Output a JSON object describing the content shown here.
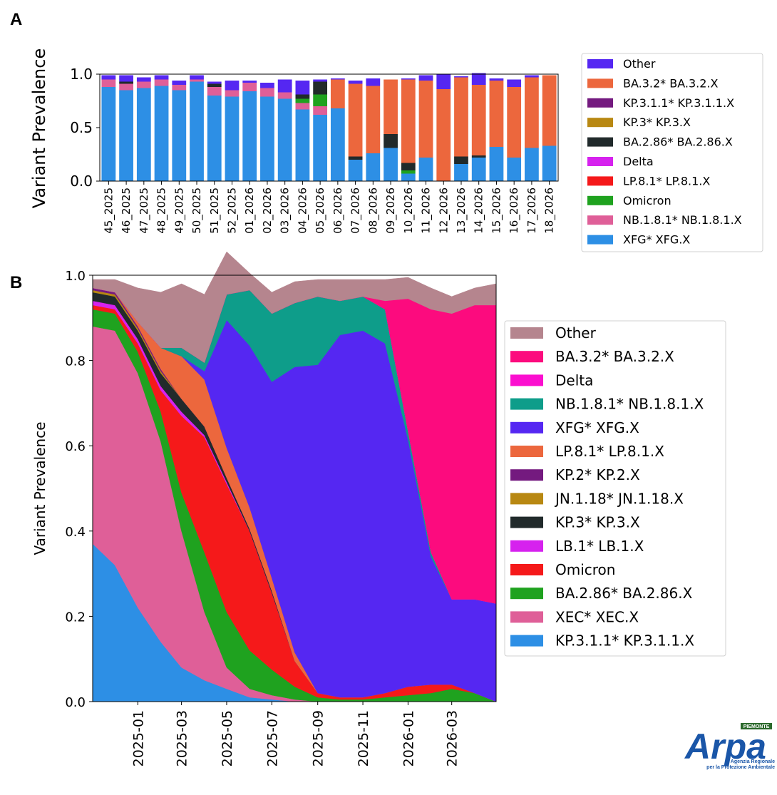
{
  "panels": {
    "a": "A",
    "b": "B"
  },
  "logo": {
    "brand": "Arpa",
    "region": "PIEMONTE",
    "line1": "Agenzia Regionale",
    "line2": "per la Protezione Ambientale"
  },
  "chart_data": [
    {
      "id": "A",
      "type": "bar",
      "stacked": true,
      "ylabel": "Variant Prevalence",
      "ylim": [
        0,
        1.0
      ],
      "yticks": [
        "0.0",
        "0.5",
        "1.0"
      ],
      "legend_placement": "right",
      "categories": [
        "45_2025",
        "46_2025",
        "47_2025",
        "48_2025",
        "49_2025",
        "50_2025",
        "51_2025",
        "52_2025",
        "01_2026",
        "02_2026",
        "03_2026",
        "04_2026",
        "05_2026",
        "06_2026",
        "07_2026",
        "08_2026",
        "09_2026",
        "10_2026",
        "11_2026",
        "12_2026",
        "13_2026",
        "14_2026",
        "15_2026",
        "16_2026",
        "17_2026",
        "18_2026"
      ],
      "series": [
        {
          "name": "XFG* XFG.X",
          "color": "#2d8fe5",
          "values": [
            0.88,
            0.85,
            0.87,
            0.89,
            0.85,
            0.93,
            0.8,
            0.79,
            0.84,
            0.79,
            0.77,
            0.67,
            0.62,
            0.68,
            0.2,
            0.26,
            0.31,
            0.07,
            0.22,
            0.0,
            0.16,
            0.22,
            0.32,
            0.22,
            0.31,
            0.33
          ]
        },
        {
          "name": "NB.1.8.1* NB.1.8.1.X",
          "color": "#df5f98",
          "values": [
            0.07,
            0.06,
            0.06,
            0.06,
            0.05,
            0.02,
            0.08,
            0.06,
            0.08,
            0.08,
            0.06,
            0.06,
            0.08,
            0.0,
            0.0,
            0.0,
            0.0,
            0.0,
            0.0,
            0.0,
            0.0,
            0.0,
            0.0,
            0.0,
            0.0,
            0.0
          ]
        },
        {
          "name": "Omicron",
          "color": "#1fa21f",
          "values": [
            0.0,
            0.0,
            0.0,
            0.0,
            0.0,
            0.0,
            0.0,
            0.0,
            0.0,
            0.0,
            0.0,
            0.04,
            0.11,
            0.0,
            0.0,
            0.0,
            0.0,
            0.03,
            0.0,
            0.0,
            0.0,
            0.0,
            0.0,
            0.0,
            0.0,
            0.0
          ]
        },
        {
          "name": "LP.8.1* LP.8.1.X",
          "color": "#f5191a",
          "values": [
            0,
            0,
            0,
            0,
            0,
            0,
            0,
            0,
            0,
            0,
            0,
            0,
            0,
            0,
            0,
            0,
            0,
            0,
            0,
            0,
            0,
            0,
            0,
            0,
            0,
            0
          ]
        },
        {
          "name": "Delta",
          "color": "#d622ee",
          "values": [
            0,
            0,
            0,
            0,
            0,
            0,
            0,
            0,
            0,
            0,
            0,
            0,
            0,
            0,
            0,
            0,
            0,
            0,
            0,
            0,
            0,
            0,
            0,
            0,
            0,
            0
          ]
        },
        {
          "name": "BA.2.86* BA.2.86.X",
          "color": "#212a2b",
          "values": [
            0.0,
            0.02,
            0.0,
            0.0,
            0.0,
            0.0,
            0.03,
            0.0,
            0.0,
            0.0,
            0.0,
            0.04,
            0.12,
            0.0,
            0.03,
            0.0,
            0.13,
            0.07,
            0.0,
            0.0,
            0.07,
            0.02,
            0.0,
            0.0,
            0.0,
            0.0
          ]
        },
        {
          "name": "KP.3* KP.3.X",
          "color": "#b88812",
          "values": [
            0,
            0,
            0,
            0,
            0,
            0,
            0,
            0,
            0,
            0,
            0,
            0,
            0,
            0,
            0,
            0,
            0,
            0,
            0,
            0,
            0,
            0,
            0,
            0,
            0,
            0
          ]
        },
        {
          "name": "KP.3.1.1* KP.3.1.1.X",
          "color": "#741a7f",
          "values": [
            0,
            0,
            0,
            0,
            0,
            0,
            0,
            0,
            0,
            0,
            0,
            0,
            0,
            0,
            0,
            0,
            0,
            0,
            0,
            0,
            0,
            0,
            0,
            0,
            0,
            0
          ]
        },
        {
          "name": "BA.3.2* BA.3.2.X",
          "color": "#ec673d",
          "values": [
            0.0,
            0.0,
            0.0,
            0.0,
            0.0,
            0.0,
            0.0,
            0.0,
            0.0,
            0.0,
            0.0,
            0.0,
            0.0,
            0.27,
            0.68,
            0.63,
            0.51,
            0.78,
            0.72,
            0.86,
            0.74,
            0.66,
            0.62,
            0.66,
            0.66,
            0.66
          ]
        },
        {
          "name": "Other",
          "color": "#5527f2",
          "values": [
            0.04,
            0.06,
            0.04,
            0.04,
            0.04,
            0.04,
            0.02,
            0.09,
            0.02,
            0.05,
            0.12,
            0.13,
            0.02,
            0.01,
            0.03,
            0.07,
            0.0,
            0.01,
            0.05,
            0.14,
            0.01,
            0.11,
            0.02,
            0.07,
            0.02,
            0.0
          ]
        }
      ]
    },
    {
      "id": "B",
      "type": "area",
      "stacked": true,
      "ylabel": "Variant Prevalence",
      "ylim": [
        0,
        1.0
      ],
      "yticks": [
        "0.0",
        "0.2",
        "0.4",
        "0.6",
        "0.8",
        "1.0"
      ],
      "xlim": [
        "2024-11-01",
        "2026-04-30"
      ],
      "xticks": [
        "2025-01",
        "2025-03",
        "2025-05",
        "2025-07",
        "2025-09",
        "2025-11",
        "2026-01",
        "2026-03"
      ],
      "legend_placement": "right",
      "x": [
        "2024-11-01",
        "2024-12-01",
        "2025-01-01",
        "2025-02-01",
        "2025-03-01",
        "2025-04-01",
        "2025-05-01",
        "2025-06-01",
        "2025-07-01",
        "2025-08-01",
        "2025-09-01",
        "2025-10-01",
        "2025-11-01",
        "2025-12-01",
        "2026-01-01",
        "2026-02-01",
        "2026-03-01",
        "2026-04-01",
        "2026-04-30"
      ],
      "series": [
        {
          "name": "KP.3.1.1* KP.3.1.1.X",
          "color": "#2d8fe5",
          "values": [
            0.37,
            0.32,
            0.22,
            0.14,
            0.08,
            0.05,
            0.03,
            0.01,
            0.005,
            0.0,
            0,
            0,
            0,
            0,
            0,
            0,
            0,
            0,
            0
          ]
        },
        {
          "name": "XEC* XEC.X",
          "color": "#df5f98",
          "values": [
            0.51,
            0.55,
            0.55,
            0.47,
            0.32,
            0.16,
            0.05,
            0.02,
            0.01,
            0.005,
            0,
            0,
            0,
            0,
            0,
            0,
            0,
            0,
            0
          ]
        },
        {
          "name": "BA.2.86* BA.2.86.X",
          "color": "#1fa21f",
          "values": [
            0.04,
            0.04,
            0.05,
            0.07,
            0.09,
            0.14,
            0.13,
            0.09,
            0.06,
            0.03,
            0.01,
            0.005,
            0.005,
            0.01,
            0.015,
            0.02,
            0.03,
            0.02,
            0.0
          ]
        },
        {
          "name": "Omicron",
          "color": "#f5191a",
          "values": [
            0.01,
            0.01,
            0.02,
            0.05,
            0.18,
            0.27,
            0.3,
            0.28,
            0.18,
            0.06,
            0.01,
            0.005,
            0.005,
            0.01,
            0.02,
            0.02,
            0.01,
            0.0,
            0.0
          ]
        },
        {
          "name": "LB.1* LB.1.X",
          "color": "#d622ee",
          "values": [
            0.01,
            0.01,
            0.01,
            0.01,
            0.01,
            0.005,
            0.005,
            0,
            0,
            0,
            0,
            0,
            0,
            0,
            0,
            0,
            0,
            0,
            0
          ]
        },
        {
          "name": "KP.3* KP.3.X",
          "color": "#212a2b",
          "values": [
            0.02,
            0.02,
            0.02,
            0.03,
            0.03,
            0.02,
            0.01,
            0.005,
            0.005,
            0,
            0,
            0,
            0,
            0,
            0,
            0,
            0,
            0,
            0
          ]
        },
        {
          "name": "JN.1.18* JN.1.18.X",
          "color": "#b88812",
          "values": [
            0.005,
            0.005,
            0.005,
            0.005,
            0,
            0,
            0,
            0,
            0,
            0,
            0,
            0,
            0,
            0,
            0,
            0,
            0,
            0,
            0
          ]
        },
        {
          "name": "KP.2* KP.2.X",
          "color": "#741a7f",
          "values": [
            0.005,
            0.005,
            0.005,
            0.005,
            0,
            0,
            0,
            0,
            0,
            0,
            0,
            0,
            0,
            0,
            0,
            0,
            0,
            0,
            0
          ]
        },
        {
          "name": "LP.8.1* LP.8.1.X",
          "color": "#ec673d",
          "values": [
            0,
            0,
            0.01,
            0.05,
            0.1,
            0.11,
            0.07,
            0.05,
            0.03,
            0.02,
            0.0,
            0,
            0,
            0,
            0,
            0,
            0,
            0,
            0
          ]
        },
        {
          "name": "XFG* XFG.X",
          "color": "#5527f2",
          "values": [
            0,
            0,
            0,
            0,
            0,
            0.02,
            0.3,
            0.38,
            0.46,
            0.67,
            0.77,
            0.85,
            0.86,
            0.82,
            0.58,
            0.3,
            0.2,
            0.22,
            0.23
          ]
        },
        {
          "name": "NB.1.8.1* NB.1.8.1.X",
          "color": "#0e9d8a",
          "values": [
            0,
            0,
            0,
            0,
            0.02,
            0.02,
            0.06,
            0.13,
            0.16,
            0.15,
            0.16,
            0.08,
            0.08,
            0.08,
            0.02,
            0.01,
            0.0,
            0.0,
            0.0
          ]
        },
        {
          "name": "Delta",
          "color": "#fb0fcf",
          "values": [
            0,
            0,
            0,
            0,
            0,
            0,
            0,
            0,
            0,
            0,
            0,
            0,
            0,
            0,
            0,
            0,
            0,
            0,
            0
          ]
        },
        {
          "name": "BA.3.2* BA.3.2.X",
          "color": "#fc0b7e",
          "values": [
            0,
            0,
            0,
            0,
            0,
            0,
            0,
            0,
            0,
            0,
            0,
            0,
            0,
            0.02,
            0.31,
            0.57,
            0.67,
            0.69,
            0.7
          ]
        },
        {
          "name": "Other",
          "color": "#b5858e",
          "values": [
            0.02,
            0.03,
            0.08,
            0.13,
            0.15,
            0.16,
            0.1,
            0.04,
            0.05,
            0.05,
            0.04,
            0.05,
            0.04,
            0.05,
            0.05,
            0.05,
            0.04,
            0.04,
            0.05
          ]
        }
      ]
    }
  ]
}
